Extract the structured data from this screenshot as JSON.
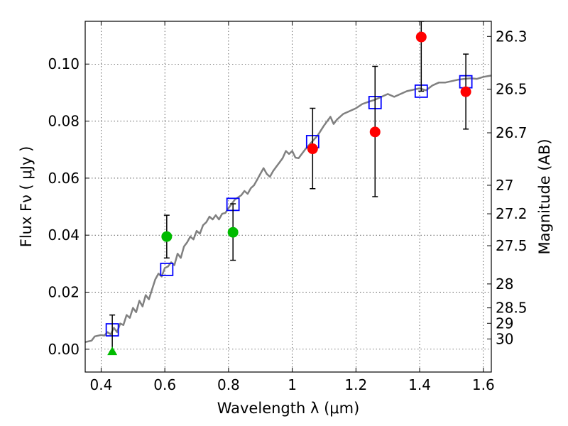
{
  "chart_data": {
    "type": "scatter",
    "xlabel": "Wavelength  λ (μm)",
    "ylabel": "Flux  Fν  ( μJy )",
    "ylabel_right": "Magnitude (AB)",
    "xlim": [
      0.35,
      1.625
    ],
    "ylim": [
      -0.008,
      0.115
    ],
    "grid": true,
    "x_ticks": [
      {
        "value": 0.4,
        "label": "0.4"
      },
      {
        "value": 0.6,
        "label": "0.6"
      },
      {
        "value": 0.8,
        "label": "0.8"
      },
      {
        "value": 1.0,
        "label": "1"
      },
      {
        "value": 1.2,
        "label": "1.2"
      },
      {
        "value": 1.4,
        "label": "1.4"
      },
      {
        "value": 1.6,
        "label": "1.6"
      }
    ],
    "y_ticks": [
      {
        "value": 0.0,
        "label": "0.00"
      },
      {
        "value": 0.02,
        "label": "0.02"
      },
      {
        "value": 0.04,
        "label": "0.04"
      },
      {
        "value": 0.06,
        "label": "0.06"
      },
      {
        "value": 0.08,
        "label": "0.08"
      },
      {
        "value": 0.1,
        "label": "0.10"
      }
    ],
    "mag_ticks": [
      {
        "value": 0.1097,
        "label": "26.3"
      },
      {
        "value": 0.0912,
        "label": "26.5"
      },
      {
        "value": 0.0759,
        "label": "26.7"
      },
      {
        "value": 0.0575,
        "label": "27"
      },
      {
        "value": 0.0475,
        "label": "27.2"
      },
      {
        "value": 0.0363,
        "label": "27.5"
      },
      {
        "value": 0.0229,
        "label": "28"
      },
      {
        "value": 0.0145,
        "label": "28.5"
      },
      {
        "value": 0.0091,
        "label": "29"
      },
      {
        "value": 0.0036,
        "label": "30"
      }
    ],
    "colors": {
      "model": "#808080",
      "model_photometry": "#0000ff",
      "observed_optical": "#00bb00",
      "observed_ir": "#ff0000",
      "error_bar": "#000000"
    },
    "series": [
      {
        "name": "model spectrum",
        "type": "line",
        "points": [
          [
            0.35,
            0.0025
          ],
          [
            0.37,
            0.003
          ],
          [
            0.38,
            0.0045
          ],
          [
            0.4,
            0.005
          ],
          [
            0.41,
            0.0048
          ],
          [
            0.42,
            0.006
          ],
          [
            0.43,
            0.0052
          ],
          [
            0.44,
            0.0075
          ],
          [
            0.45,
            0.006
          ],
          [
            0.46,
            0.009
          ],
          [
            0.47,
            0.0085
          ],
          [
            0.48,
            0.012
          ],
          [
            0.49,
            0.011
          ],
          [
            0.5,
            0.0145
          ],
          [
            0.51,
            0.013
          ],
          [
            0.52,
            0.017
          ],
          [
            0.53,
            0.015
          ],
          [
            0.54,
            0.019
          ],
          [
            0.55,
            0.0175
          ],
          [
            0.56,
            0.021
          ],
          [
            0.57,
            0.0245
          ],
          [
            0.58,
            0.0265
          ],
          [
            0.59,
            0.0255
          ],
          [
            0.6,
            0.0285
          ],
          [
            0.61,
            0.029
          ],
          [
            0.62,
            0.0305
          ],
          [
            0.63,
            0.0295
          ],
          [
            0.64,
            0.0335
          ],
          [
            0.65,
            0.032
          ],
          [
            0.66,
            0.036
          ],
          [
            0.67,
            0.0375
          ],
          [
            0.68,
            0.0395
          ],
          [
            0.69,
            0.0385
          ],
          [
            0.7,
            0.0415
          ],
          [
            0.71,
            0.0405
          ],
          [
            0.72,
            0.0435
          ],
          [
            0.73,
            0.0445
          ],
          [
            0.74,
            0.0465
          ],
          [
            0.75,
            0.0455
          ],
          [
            0.76,
            0.047
          ],
          [
            0.77,
            0.0455
          ],
          [
            0.78,
            0.0475
          ],
          [
            0.79,
            0.0478
          ],
          [
            0.8,
            0.0495
          ],
          [
            0.82,
            0.0525
          ],
          [
            0.84,
            0.054
          ],
          [
            0.85,
            0.0555
          ],
          [
            0.86,
            0.0545
          ],
          [
            0.87,
            0.0565
          ],
          [
            0.88,
            0.0575
          ],
          [
            0.89,
            0.0595
          ],
          [
            0.9,
            0.0615
          ],
          [
            0.91,
            0.0635
          ],
          [
            0.92,
            0.0615
          ],
          [
            0.93,
            0.0605
          ],
          [
            0.94,
            0.0625
          ],
          [
            0.95,
            0.064
          ],
          [
            0.96,
            0.0655
          ],
          [
            0.97,
            0.067
          ],
          [
            0.98,
            0.0695
          ],
          [
            0.99,
            0.0685
          ],
          [
            1.0,
            0.0695
          ],
          [
            1.01,
            0.0672
          ],
          [
            1.02,
            0.067
          ],
          [
            1.04,
            0.07
          ],
          [
            1.06,
            0.0725
          ],
          [
            1.08,
            0.075
          ],
          [
            1.1,
            0.0785
          ],
          [
            1.12,
            0.0815
          ],
          [
            1.13,
            0.079
          ],
          [
            1.14,
            0.0805
          ],
          [
            1.16,
            0.0825
          ],
          [
            1.18,
            0.0835
          ],
          [
            1.2,
            0.0845
          ],
          [
            1.22,
            0.086
          ],
          [
            1.24,
            0.0868
          ],
          [
            1.26,
            0.0875
          ],
          [
            1.28,
            0.0885
          ],
          [
            1.3,
            0.0895
          ],
          [
            1.32,
            0.0885
          ],
          [
            1.34,
            0.0895
          ],
          [
            1.36,
            0.0905
          ],
          [
            1.38,
            0.091
          ],
          [
            1.4,
            0.0915
          ],
          [
            1.42,
            0.0908
          ],
          [
            1.44,
            0.0925
          ],
          [
            1.46,
            0.0935
          ],
          [
            1.48,
            0.0935
          ],
          [
            1.5,
            0.094
          ],
          [
            1.52,
            0.0945
          ],
          [
            1.54,
            0.0948
          ],
          [
            1.56,
            0.095
          ],
          [
            1.58,
            0.0948
          ],
          [
            1.6,
            0.0955
          ],
          [
            1.625,
            0.096
          ]
        ]
      },
      {
        "name": "model photometry",
        "type": "scatter",
        "marker": "open-square",
        "x": [
          0.435,
          0.606,
          0.814,
          1.064,
          1.26,
          1.405,
          1.545
        ],
        "y": [
          0.0068,
          0.028,
          0.0508,
          0.0728,
          0.0865,
          0.0905,
          0.0938
        ]
      },
      {
        "name": "observed optical",
        "type": "scatter",
        "marker": "circle",
        "x": [
          0.606,
          0.814
        ],
        "y": [
          0.0395,
          0.041
        ],
        "yerr_low": [
          0.032,
          0.0312
        ],
        "yerr_high": [
          0.047,
          0.051
        ]
      },
      {
        "name": "observed optical upper limit",
        "type": "scatter",
        "marker": "triangle",
        "x": [
          0.435
        ],
        "y": [
          -0.0008
        ],
        "yerr_low": [
          -0.0008
        ],
        "yerr_high": [
          0.012
        ]
      },
      {
        "name": "observed infrared",
        "type": "scatter",
        "marker": "circle",
        "x": [
          1.064,
          1.26,
          1.405,
          1.545
        ],
        "y": [
          0.0703,
          0.0762,
          0.1095,
          0.0903
        ],
        "yerr_low": [
          0.0563,
          0.0535,
          0.0905,
          0.0772
        ],
        "yerr_high": [
          0.0845,
          0.0992,
          0.115,
          0.1035
        ]
      }
    ]
  }
}
